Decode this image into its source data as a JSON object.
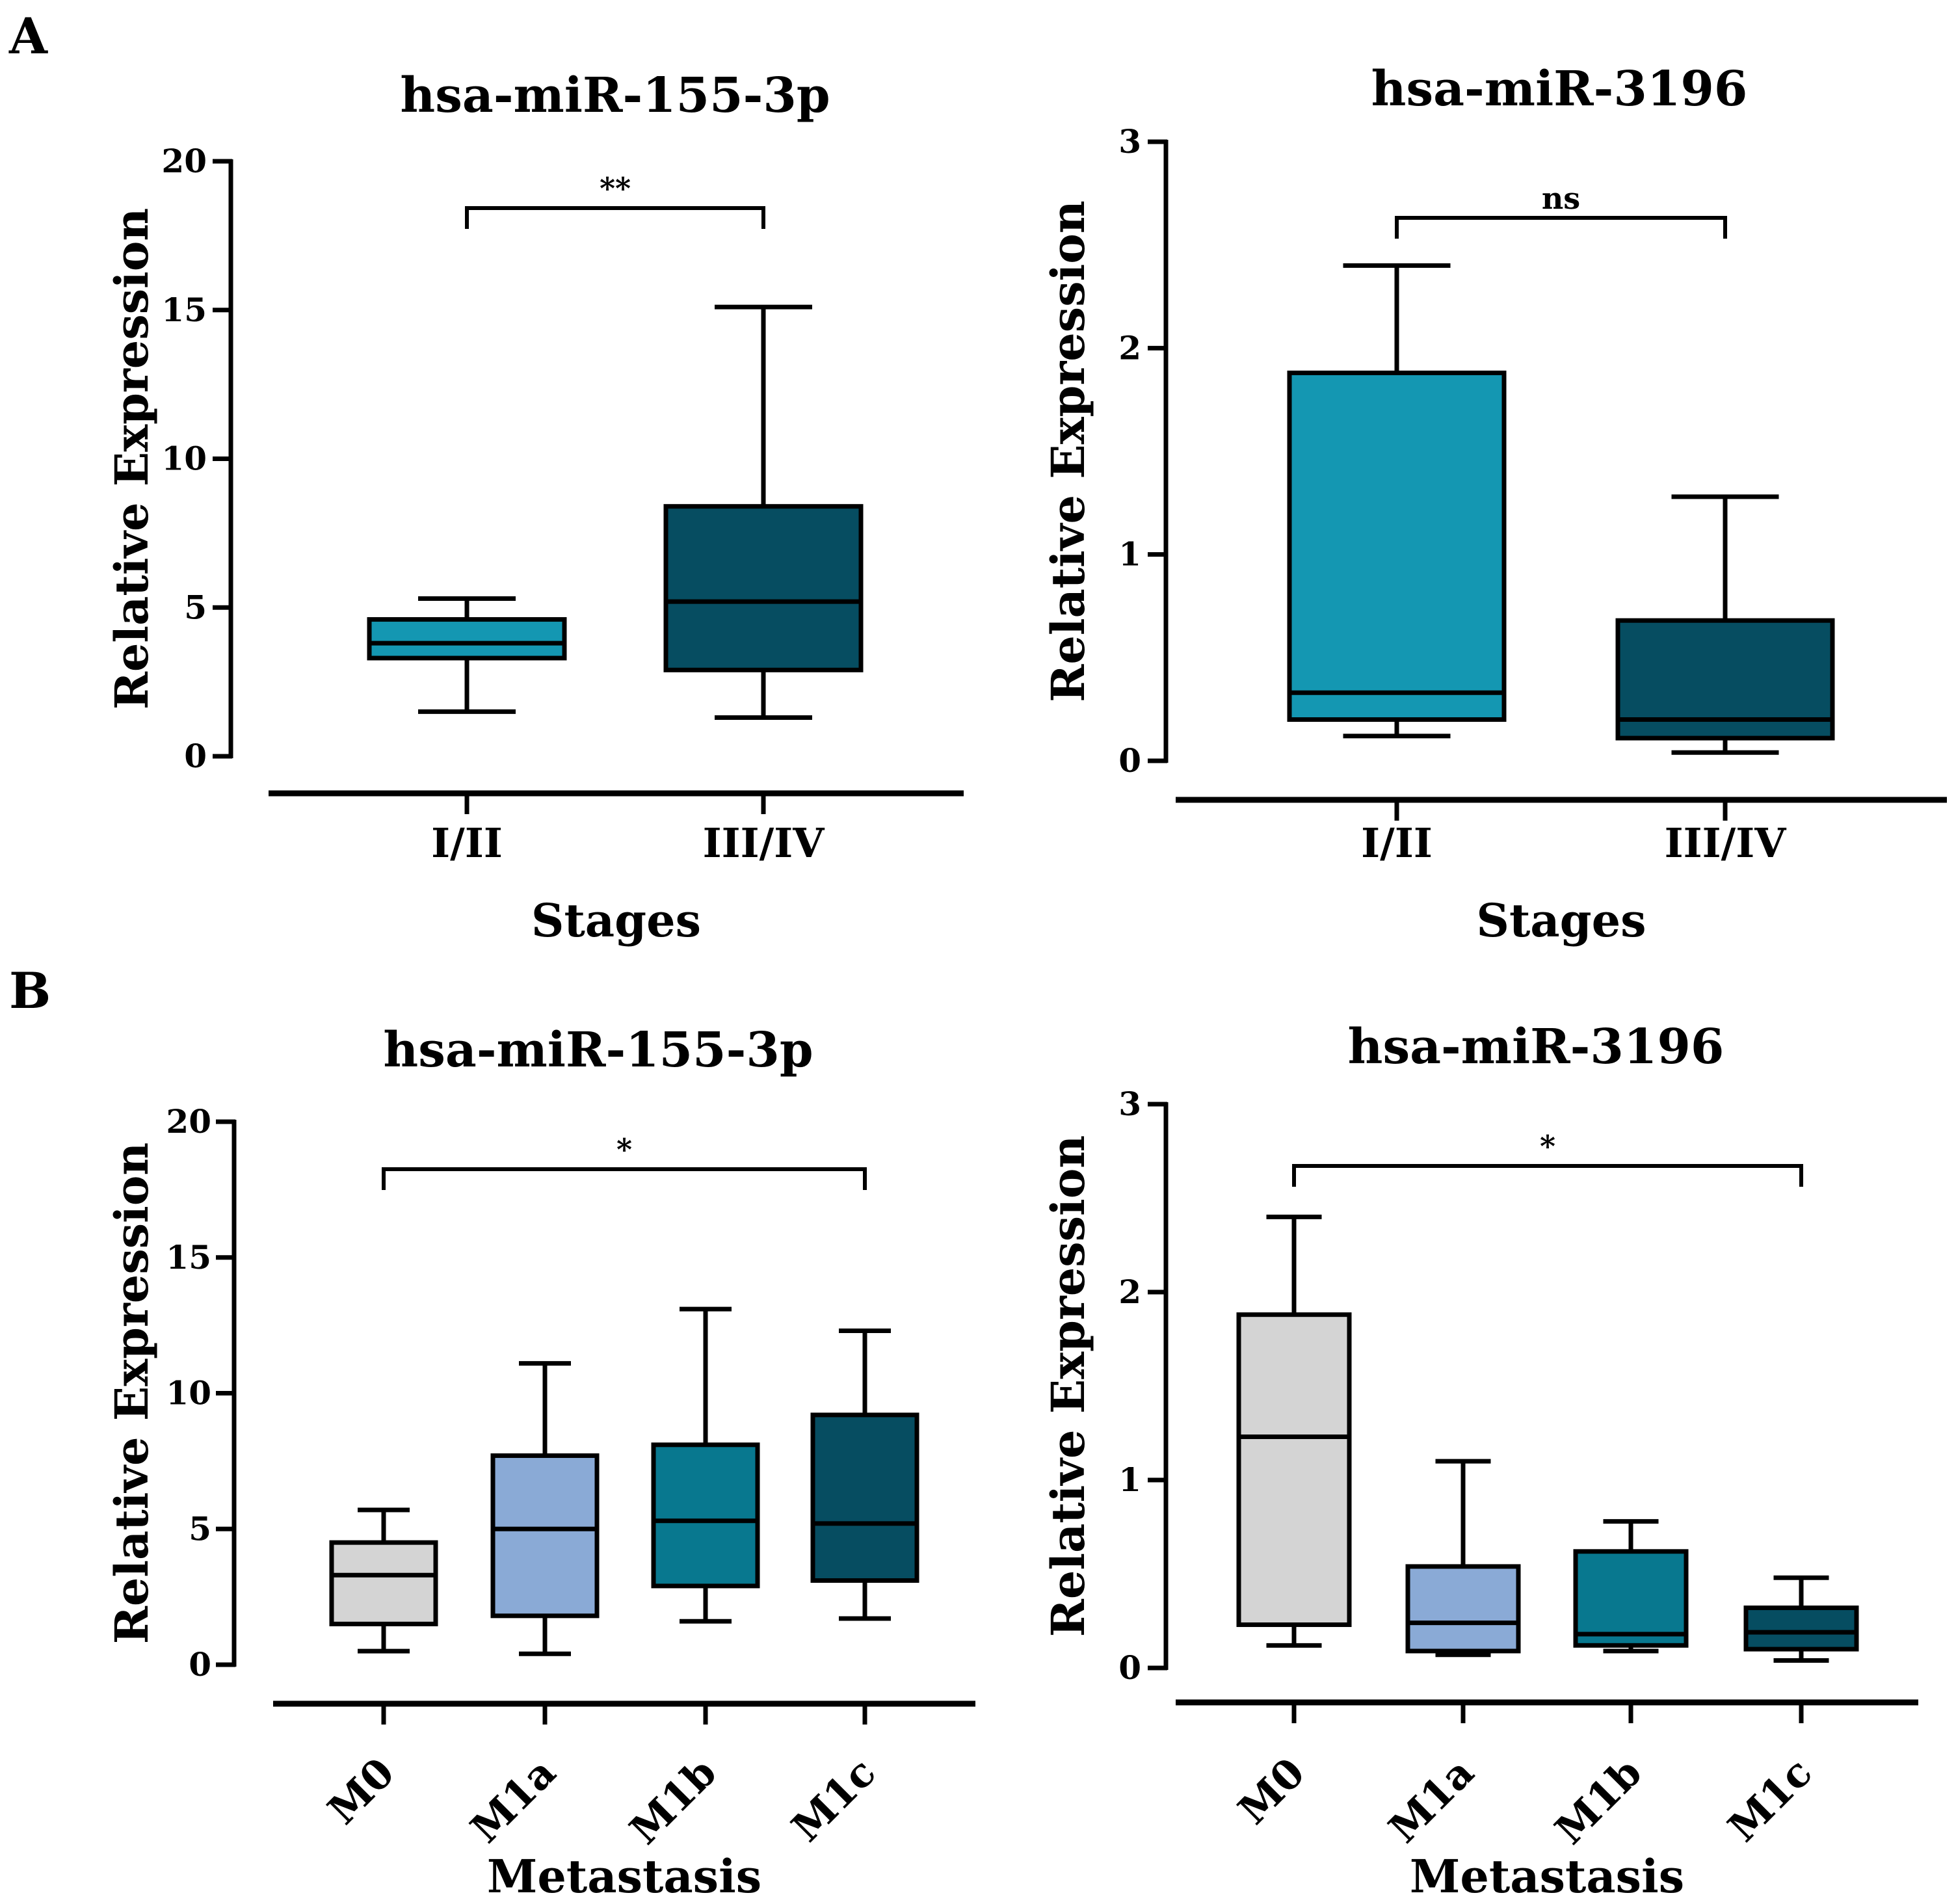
{
  "panels": [
    {
      "letter": "A"
    },
    {
      "letter": "B"
    }
  ],
  "chart_data": [
    {
      "type": "boxplot",
      "panel": "A",
      "title": "hsa-miR-155-3p",
      "xlabel": "Stages",
      "ylabel": "Relative Expression",
      "ylim": [
        0,
        20
      ],
      "yticks": [
        "0",
        "5",
        "10",
        "15",
        "20"
      ],
      "yticks_values": [
        0,
        5,
        10,
        15,
        20
      ],
      "categories": [
        "I/II",
        "III/IV"
      ],
      "colors": [
        "#1497b2",
        "#064d61"
      ],
      "boxes": [
        {
          "min": 1.5,
          "q1": 3.3,
          "median": 3.8,
          "q3": 4.6,
          "max": 5.3
        },
        {
          "min": 1.3,
          "q1": 2.9,
          "median": 5.2,
          "q3": 8.4,
          "max": 15.1
        }
      ],
      "significance": [
        {
          "from": 0,
          "to": 1,
          "label": "**"
        }
      ]
    },
    {
      "type": "boxplot",
      "panel": "A",
      "title": "hsa-miR-3196",
      "xlabel": "Stages",
      "ylabel": "Relative Expression",
      "ylim": [
        0,
        3
      ],
      "yticks": [
        "0",
        "1",
        "2",
        "3"
      ],
      "yticks_values": [
        0,
        1,
        2,
        3
      ],
      "categories": [
        "I/II",
        "III/IV"
      ],
      "colors": [
        "#1497b2",
        "#064d61"
      ],
      "boxes": [
        {
          "min": 0.12,
          "q1": 0.2,
          "median": 0.33,
          "q3": 1.88,
          "max": 2.4
        },
        {
          "min": 0.04,
          "q1": 0.11,
          "median": 0.2,
          "q3": 0.68,
          "max": 1.28
        }
      ],
      "significance": [
        {
          "from": 0,
          "to": 1,
          "label": "ns"
        }
      ]
    },
    {
      "type": "boxplot",
      "panel": "B",
      "title": "hsa-miR-155-3p",
      "xlabel": "Metastasis",
      "ylabel": "Relative Expression",
      "ylim": [
        0,
        20
      ],
      "yticks": [
        "0",
        "5",
        "10",
        "15",
        "20"
      ],
      "yticks_values": [
        0,
        5,
        10,
        15,
        20
      ],
      "categories": [
        "M0",
        "M1a",
        "M1b",
        "M1c"
      ],
      "colors": [
        "#d4d4d4",
        "#8aaad6",
        "#08788f",
        "#064d61"
      ],
      "boxes": [
        {
          "min": 0.5,
          "q1": 1.5,
          "median": 3.3,
          "q3": 4.5,
          "max": 5.7
        },
        {
          "min": 0.4,
          "q1": 1.8,
          "median": 5.0,
          "q3": 7.7,
          "max": 11.1
        },
        {
          "min": 1.6,
          "q1": 2.9,
          "median": 5.3,
          "q3": 8.1,
          "max": 13.1
        },
        {
          "min": 1.7,
          "q1": 3.1,
          "median": 5.2,
          "q3": 9.2,
          "max": 12.3
        }
      ],
      "significance": [
        {
          "from": 0,
          "to": 3,
          "label": "*"
        }
      ]
    },
    {
      "type": "boxplot",
      "panel": "B",
      "title": "hsa-miR-3196",
      "xlabel": "Metastasis",
      "ylabel": "Relative Expression",
      "ylim": [
        0,
        3
      ],
      "yticks": [
        "0",
        "1",
        "2",
        "3"
      ],
      "yticks_values": [
        0,
        1,
        2,
        3
      ],
      "categories": [
        "M0",
        "M1a",
        "M1b",
        "M1c"
      ],
      "colors": [
        "#d4d4d4",
        "#8aaad6",
        "#08788f",
        "#064d61"
      ],
      "boxes": [
        {
          "min": 0.12,
          "q1": 0.23,
          "median": 1.23,
          "q3": 1.88,
          "max": 2.4
        },
        {
          "min": 0.07,
          "q1": 0.09,
          "median": 0.24,
          "q3": 0.54,
          "max": 1.1
        },
        {
          "min": 0.09,
          "q1": 0.12,
          "median": 0.18,
          "q3": 0.62,
          "max": 0.78
        },
        {
          "min": 0.04,
          "q1": 0.1,
          "median": 0.19,
          "q3": 0.32,
          "max": 0.48
        }
      ],
      "significance": [
        {
          "from": 0,
          "to": 3,
          "label": "*"
        }
      ]
    }
  ]
}
